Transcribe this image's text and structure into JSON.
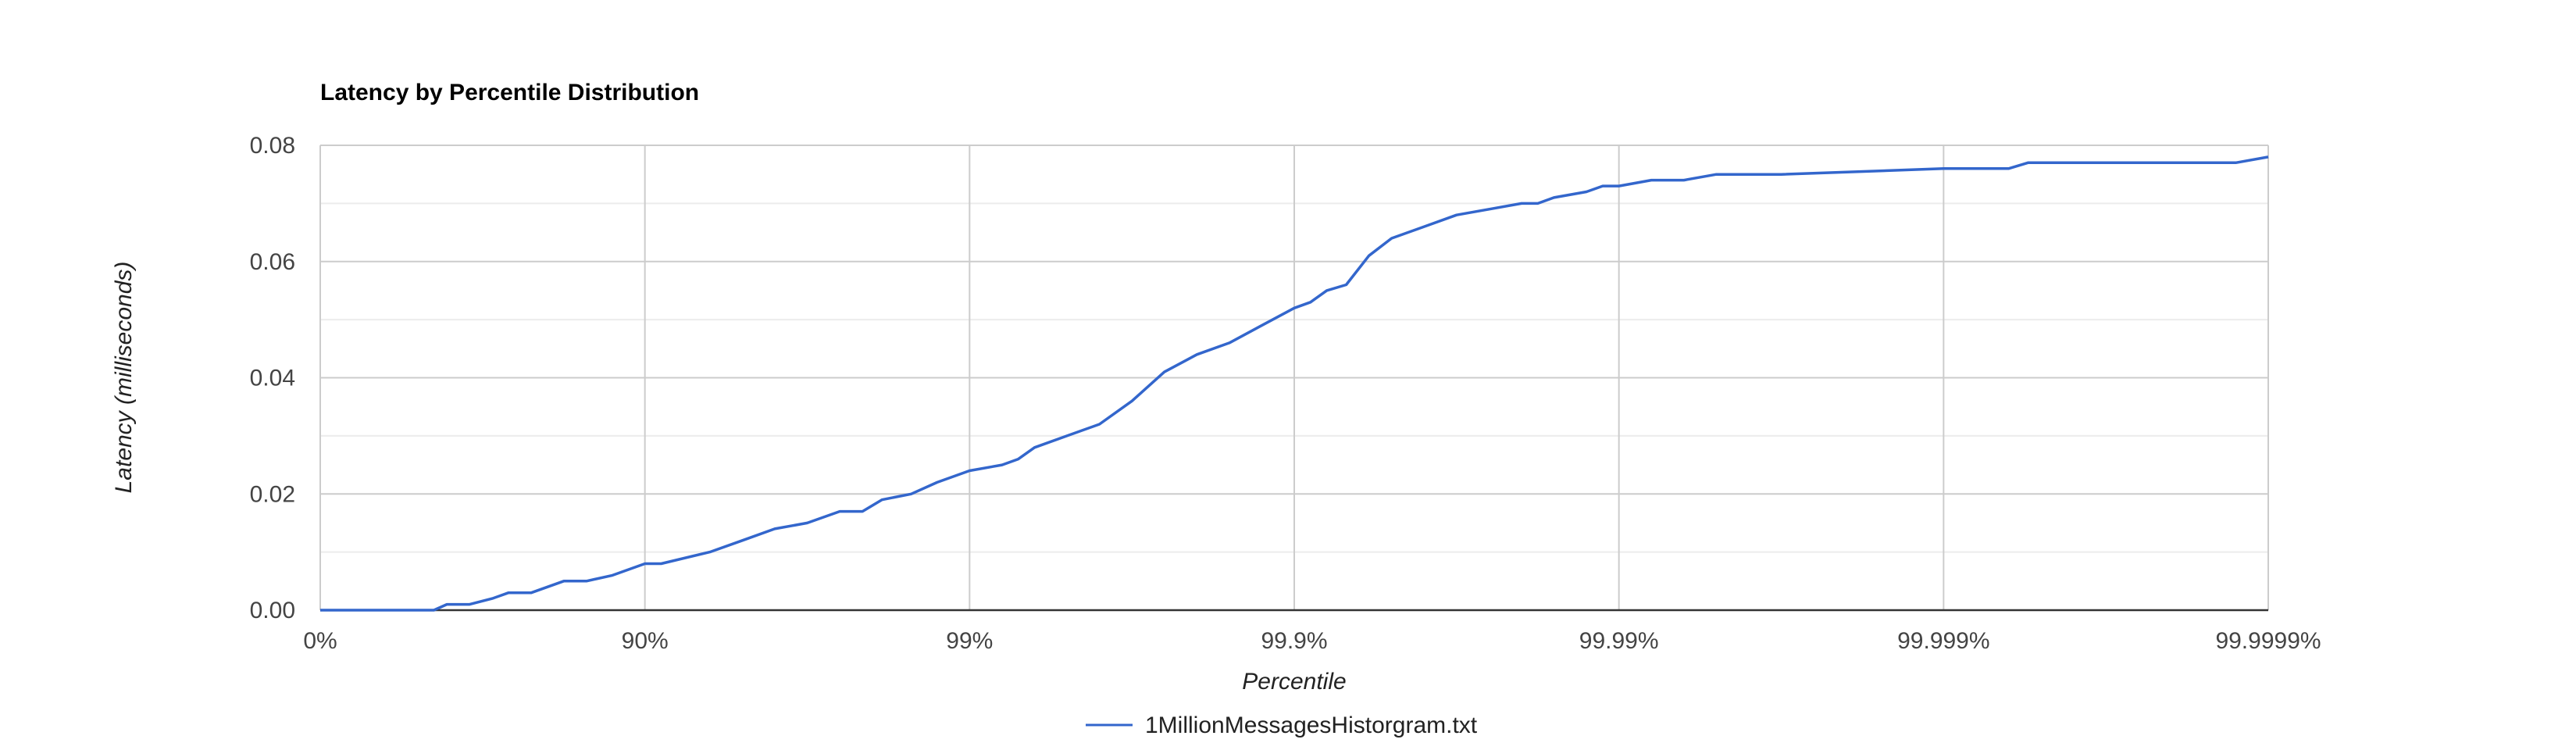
{
  "chart_data": {
    "type": "line",
    "title": "Latency by Percentile Distribution",
    "xlabel": "Percentile",
    "ylabel": "Latency (milliseconds)",
    "x_scale": "log(1/(1-p))",
    "x_ticks": [
      "0%",
      "90%",
      "99%",
      "99.9%",
      "99.99%",
      "99.999%",
      "99.9999%"
    ],
    "y_ticks": [
      "0.00",
      "0.02",
      "0.04",
      "0.06",
      "0.08"
    ],
    "ylim": [
      0,
      0.08
    ],
    "grid": true,
    "legend_position": "bottom",
    "series": [
      {
        "name": "1MillionMessagesHistorgram.txt",
        "color": "#3366cc",
        "x_decades": [
          0,
          0.35,
          0.39,
          0.46,
          0.53,
          0.58,
          0.65,
          0.75,
          0.82,
          0.9,
          1.0,
          1.05,
          1.2,
          1.3,
          1.4,
          1.5,
          1.6,
          1.67,
          1.73,
          1.82,
          1.9,
          2.0,
          2.1,
          2.15,
          2.2,
          2.3,
          2.4,
          2.5,
          2.6,
          2.7,
          2.8,
          2.9,
          3.0,
          3.05,
          3.1,
          3.16,
          3.23,
          3.3,
          3.4,
          3.5,
          3.6,
          3.7,
          3.75,
          3.8,
          3.9,
          3.95,
          4.0,
          4.1,
          4.2,
          4.3,
          4.4,
          4.5,
          5.0,
          5.2,
          5.26,
          5.5,
          5.9,
          6.0
        ],
        "y": [
          0,
          0,
          0.001,
          0.001,
          0.002,
          0.003,
          0.003,
          0.005,
          0.005,
          0.006,
          0.008,
          0.008,
          0.01,
          0.012,
          0.014,
          0.015,
          0.017,
          0.017,
          0.019,
          0.02,
          0.022,
          0.024,
          0.025,
          0.026,
          0.028,
          0.03,
          0.032,
          0.036,
          0.041,
          0.044,
          0.046,
          0.049,
          0.052,
          0.053,
          0.055,
          0.056,
          0.061,
          0.064,
          0.066,
          0.068,
          0.069,
          0.07,
          0.07,
          0.071,
          0.072,
          0.073,
          0.073,
          0.074,
          0.074,
          0.075,
          0.075,
          0.075,
          0.076,
          0.076,
          0.077,
          0.077,
          0.077,
          0.078
        ]
      }
    ]
  }
}
